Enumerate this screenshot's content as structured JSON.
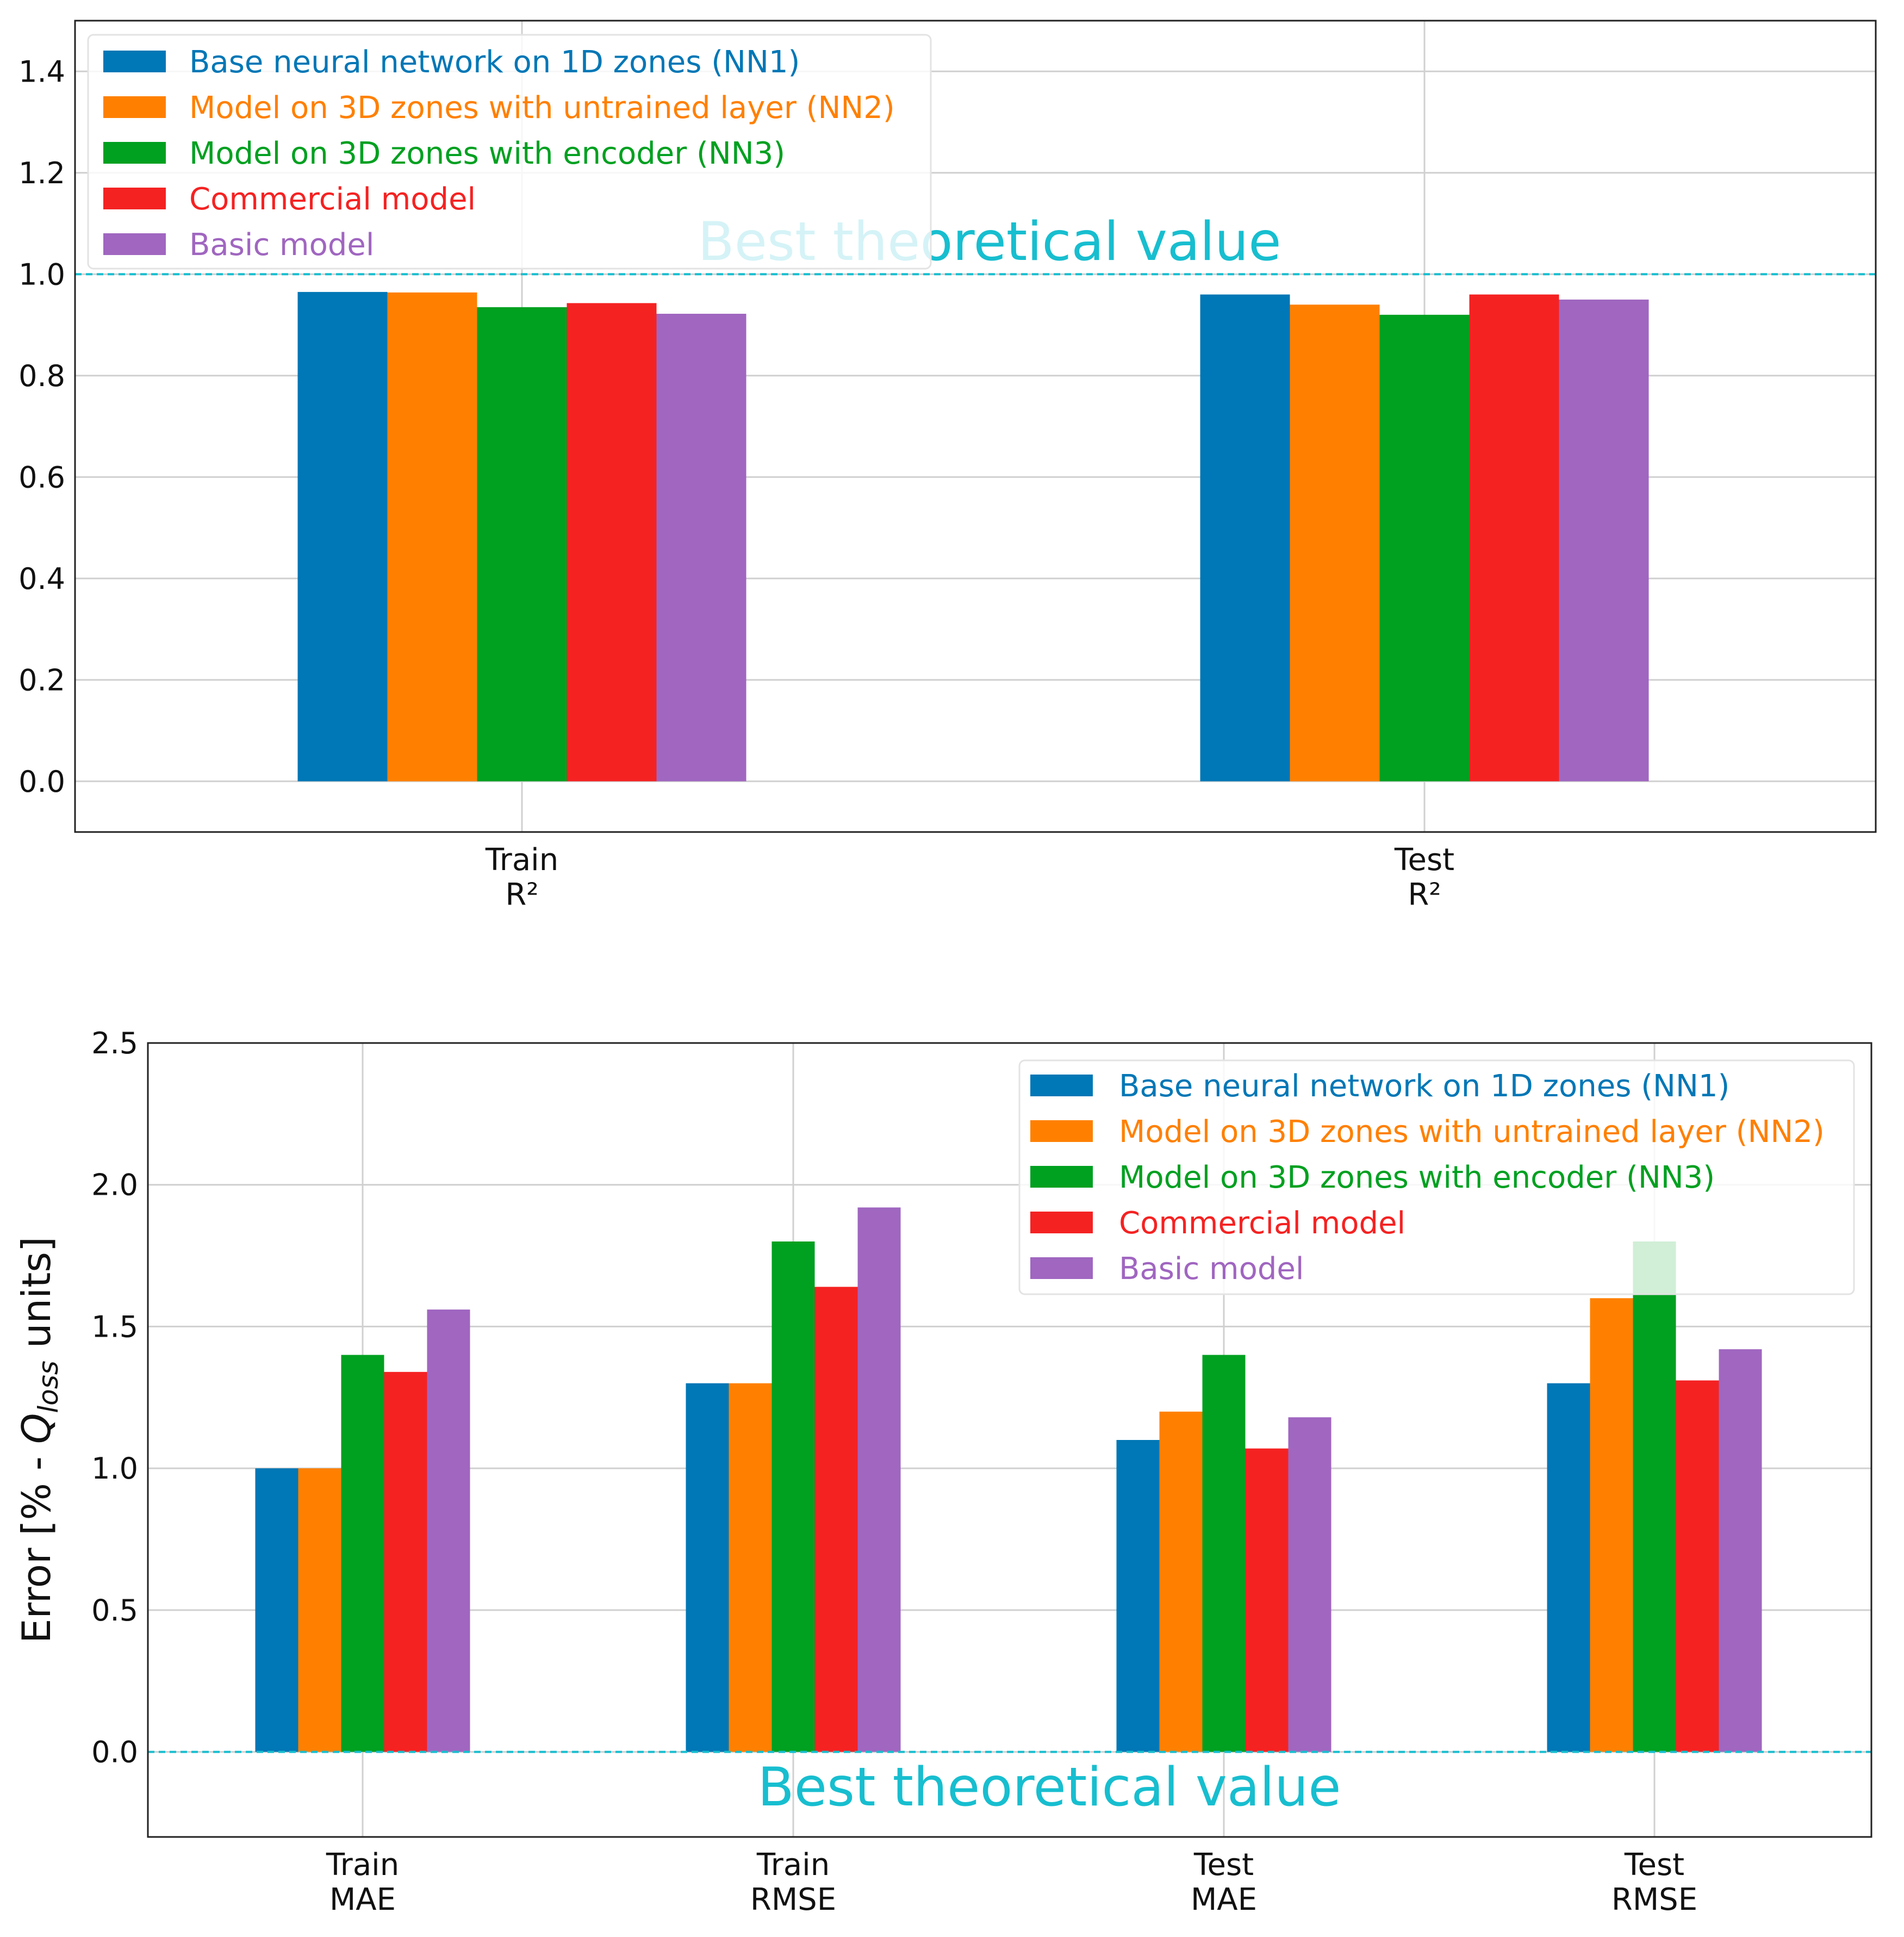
{
  "colors": {
    "NN1": "#0077b6",
    "NN2": "#ff8000",
    "NN3": "#00a020",
    "Commercial": "#f52222",
    "Basic": "#a066c0",
    "reference_line": "#17becf",
    "grid": "#d0d0d0",
    "frame": "#222222"
  },
  "chart_data": [
    {
      "type": "bar",
      "title": "",
      "xlabel": "",
      "ylabel": "",
      "ylim": [
        -0.1,
        1.5
      ],
      "yticks": [
        "0.0",
        "0.2",
        "0.4",
        "0.6",
        "0.8",
        "1.0",
        "1.2",
        "1.4"
      ],
      "grid": true,
      "legend_position": "top-left",
      "categories": [
        {
          "line1": "Train",
          "line2": "R²"
        },
        {
          "line1": "Test",
          "line2": "R²"
        }
      ],
      "series": [
        {
          "name": "Base neural network on 1D zones (NN1)",
          "color": "#0077b6",
          "values": [
            0.965,
            0.96
          ]
        },
        {
          "name": "Model on 3D zones with untrained layer (NN2)",
          "color": "#ff8000",
          "values": [
            0.964,
            0.94
          ]
        },
        {
          "name": "Model on 3D zones with encoder (NN3)",
          "color": "#00a020",
          "values": [
            0.935,
            0.92
          ]
        },
        {
          "name": "Commercial model",
          "color": "#f52222",
          "values": [
            0.943,
            0.96
          ]
        },
        {
          "name": "Basic model",
          "color": "#a066c0",
          "values": [
            0.922,
            0.95
          ]
        }
      ],
      "reference_line": {
        "value": 1.0,
        "label": "Best theoretical value"
      }
    },
    {
      "type": "bar",
      "title": "",
      "xlabel": "",
      "ylabel_prefix": "Error [% - ",
      "ylabel_symbol": "Q",
      "ylabel_subscript": "loss",
      "ylabel_suffix": " units]",
      "ylim": [
        -0.3,
        2.5
      ],
      "yticks": [
        "0.0",
        "0.5",
        "1.0",
        "1.5",
        "2.0",
        "2.5"
      ],
      "grid": true,
      "legend_position": "top-right",
      "categories": [
        {
          "line1": "Train",
          "line2": "MAE"
        },
        {
          "line1": "Train",
          "line2": "RMSE"
        },
        {
          "line1": "Test",
          "line2": "MAE"
        },
        {
          "line1": "Test",
          "line2": "RMSE"
        }
      ],
      "series": [
        {
          "name": "Base neural network on 1D zones (NN1)",
          "color": "#0077b6",
          "values": [
            1.0,
            1.3,
            1.1,
            1.3
          ]
        },
        {
          "name": "Model on 3D zones with untrained layer (NN2)",
          "color": "#ff8000",
          "values": [
            1.0,
            1.3,
            1.2,
            1.6
          ]
        },
        {
          "name": "Model on 3D zones with encoder (NN3)",
          "color": "#00a020",
          "values": [
            1.4,
            1.8,
            1.4,
            1.8
          ]
        },
        {
          "name": "Commercial model",
          "color": "#f52222",
          "values": [
            1.34,
            1.64,
            1.07,
            1.31
          ]
        },
        {
          "name": "Basic model",
          "color": "#a066c0",
          "values": [
            1.56,
            1.92,
            1.18,
            1.42
          ]
        }
      ],
      "reference_line": {
        "value": 0.0,
        "label": "Best theoretical value"
      }
    }
  ]
}
